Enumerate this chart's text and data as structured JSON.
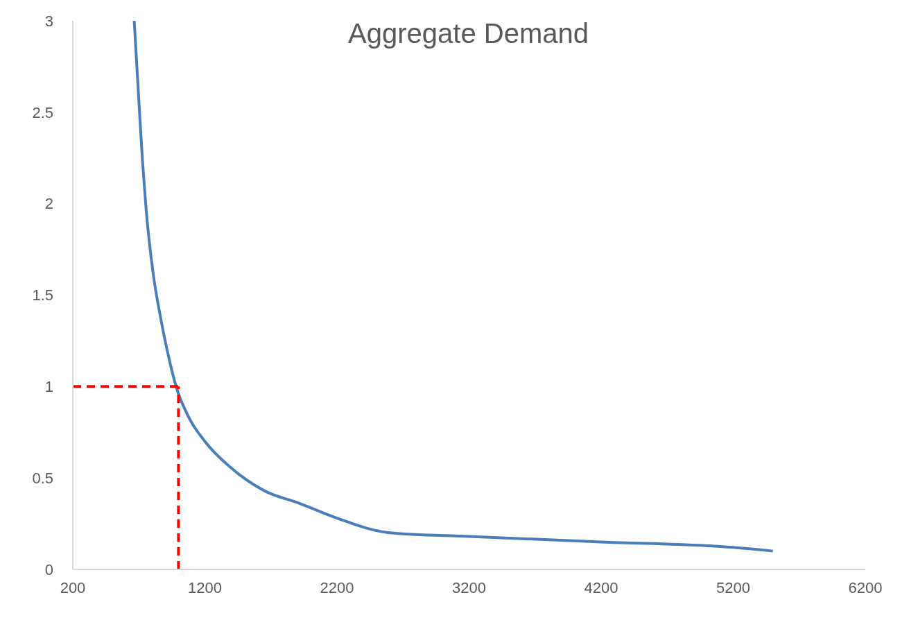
{
  "chart_data": {
    "type": "line",
    "title": "Aggregate Demand",
    "series": [
      {
        "color": "#4a7ebb",
        "x": [
          665,
          702,
          728,
          755,
          808,
          861,
          914,
          982,
          1072,
          1200,
          1390,
          1650,
          1920,
          2200,
          2600,
          3200,
          4200,
          5200,
          5500
        ],
        "values": [
          3,
          2.54,
          2.23,
          1.97,
          1.62,
          1.39,
          1.2,
          1,
          0.84,
          0.7,
          0.56,
          0.43,
          0.36,
          0.28,
          0.2,
          0.18,
          0.15,
          0.12,
          0.1
        ]
      }
    ],
    "xlim": [
      200,
      6200
    ],
    "xticks": [
      200,
      1200,
      2200,
      3200,
      4200,
      5200,
      6200
    ],
    "ylim": [
      0,
      3
    ],
    "yticks": [
      0,
      0.5,
      1,
      1.5,
      2,
      2.5,
      3
    ],
    "grid": false,
    "legend": false,
    "marker": "none",
    "line_style": "solid",
    "ref_lines": [
      {
        "axis": "x",
        "value": 1000,
        "color": "#ff0000",
        "line_style": "dashed"
      },
      {
        "axis": "y",
        "value": 1,
        "color": "#ff0000",
        "line_style": "dashed"
      }
    ]
  }
}
